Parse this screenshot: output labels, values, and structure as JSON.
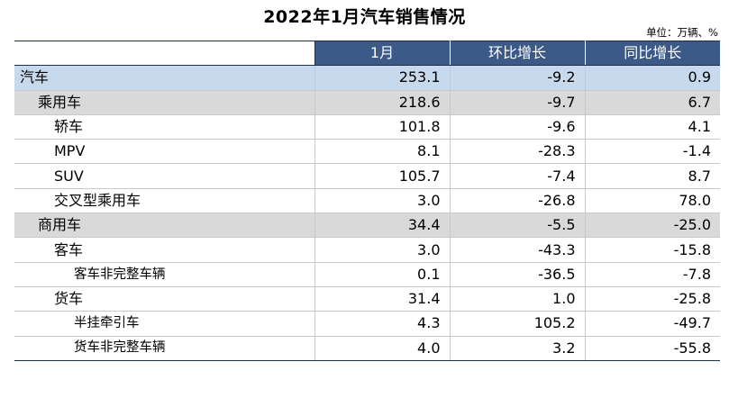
{
  "title": "2022年1月汽车销售情况",
  "unit": "单位：万辆、%",
  "columns": [
    "",
    "1月",
    "环比增长",
    "同比增长"
  ],
  "rows": [
    {
      "label": "汽车",
      "level": 0,
      "jan": "253.1",
      "mom": "-9.2",
      "yoy": "0.9"
    },
    {
      "label": "乘用车",
      "level": 1,
      "jan": "218.6",
      "mom": "-9.7",
      "yoy": "6.7"
    },
    {
      "label": "轿车",
      "level": 2,
      "jan": "101.8",
      "mom": "-9.6",
      "yoy": "4.1"
    },
    {
      "label": "MPV",
      "level": 2,
      "jan": "8.1",
      "mom": "-28.3",
      "yoy": "-1.4"
    },
    {
      "label": "SUV",
      "level": 2,
      "jan": "105.7",
      "mom": "-7.4",
      "yoy": "8.7"
    },
    {
      "label": "交叉型乘用车",
      "level": 2,
      "jan": "3.0",
      "mom": "-26.8",
      "yoy": "78.0"
    },
    {
      "label": "商用车",
      "level": 1,
      "jan": "34.4",
      "mom": "-5.5",
      "yoy": "-25.0"
    },
    {
      "label": "客车",
      "level": 2,
      "jan": "3.0",
      "mom": "-43.3",
      "yoy": "-15.8"
    },
    {
      "label": "客车非完整车辆",
      "level": 3,
      "jan": "0.1",
      "mom": "-36.5",
      "yoy": "-7.8"
    },
    {
      "label": "货车",
      "level": 2,
      "jan": "31.4",
      "mom": "1.0",
      "yoy": "-25.8"
    },
    {
      "label": "半挂牵引车",
      "level": 3,
      "jan": "4.3",
      "mom": "105.2",
      "yoy": "-49.7"
    },
    {
      "label": "货车非完整车辆",
      "level": 3,
      "jan": "4.0",
      "mom": "3.2",
      "yoy": "-55.8"
    }
  ],
  "colors": {
    "header_bg": "#3c5a87",
    "level0_bg": "#c7d9ec",
    "level1_bg": "#d9d9d9"
  }
}
